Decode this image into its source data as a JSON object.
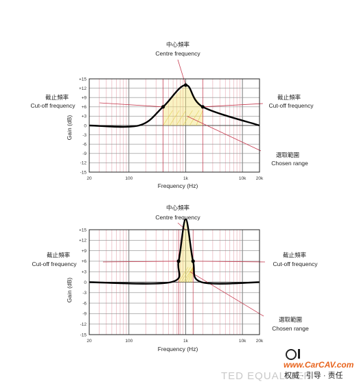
{
  "panels": [
    {
      "id": "wide",
      "center_cn": "中心頻率",
      "center_en": "Centre frequency",
      "cutoff_left_cn": "截止頻率",
      "cutoff_left_en": "Cut-off frequency",
      "cutoff_right_cn": "截止頻率",
      "cutoff_right_en": "Cut-off frequency",
      "range_cn": "選取範圍",
      "range_en": "Chosen range",
      "xlabel": "Frequency (Hz)",
      "ylabel": "Gain (dB)",
      "x_ticks": [
        "20",
        "100",
        "1k",
        "10k",
        "20k"
      ],
      "y_ticks": [
        "+15",
        "+12",
        "+9",
        "+6",
        "+3",
        "0",
        "-3",
        "-6",
        "-9",
        "-12",
        "-15"
      ]
    },
    {
      "id": "narrow",
      "center_cn": "中心頻率",
      "center_en": "Centre frequency",
      "cutoff_left_cn": "截止頻率",
      "cutoff_left_en": "Cut-off frequency",
      "cutoff_right_cn": "截止頻率",
      "cutoff_right_en": "Cut-off frequency",
      "range_cn": "選取範圍",
      "range_en": "Chosen range",
      "xlabel": "Frequency (Hz)",
      "ylabel": "Gain (dB)",
      "x_ticks": [
        "20",
        "100",
        "1k",
        "10k",
        "20k"
      ],
      "y_ticks": [
        "+15",
        "+12",
        "+9",
        "+6",
        "+3",
        "0",
        "-3",
        "-6",
        "-9",
        "-12",
        "-15"
      ]
    }
  ],
  "chart_data": [
    {
      "type": "line",
      "xscale": "log",
      "xlabel": "Frequency (Hz)",
      "ylabel": "Gain (dB)",
      "xlim": [
        20,
        20000
      ],
      "ylim": [
        -15,
        15
      ],
      "grid": true,
      "series": [
        {
          "x": [
            20,
            150,
            400,
            1000,
            2000,
            20000
          ],
          "y": [
            0,
            0,
            6,
            13,
            6,
            0
          ]
        }
      ],
      "annotations": [
        "中心頻率 Centre frequency",
        "截止頻率 Cut-off frequency",
        "選取範圍 Chosen range"
      ]
    },
    {
      "type": "line",
      "xscale": "log",
      "xlabel": "Frequency (Hz)",
      "ylabel": "Gain (dB)",
      "xlim": [
        20,
        20000
      ],
      "ylim": [
        -15,
        15
      ],
      "grid": true,
      "series": [
        {
          "x": [
            20,
            550,
            750,
            1000,
            1350,
            1900,
            20000
          ],
          "y": [
            0,
            0,
            6,
            18,
            6,
            0,
            0
          ]
        }
      ],
      "annotations": [
        "中心頻率 Centre frequency",
        "截止頻率 Cut-off frequency",
        "選取範圍 Chosen range"
      ]
    }
  ],
  "watermark": "TED EQUALIZER",
  "logo": {
    "site": "www.CarCAV.com",
    "slogan": "权威 · 引导 · 责任"
  },
  "colors": {
    "curve": "#000000",
    "grid": "#8a8a8a",
    "grid_pink": "#e7a3ad",
    "annotation_line": "#c63a4f",
    "range_fill": "#f2e27a",
    "logo_orange": "#e8641d"
  }
}
